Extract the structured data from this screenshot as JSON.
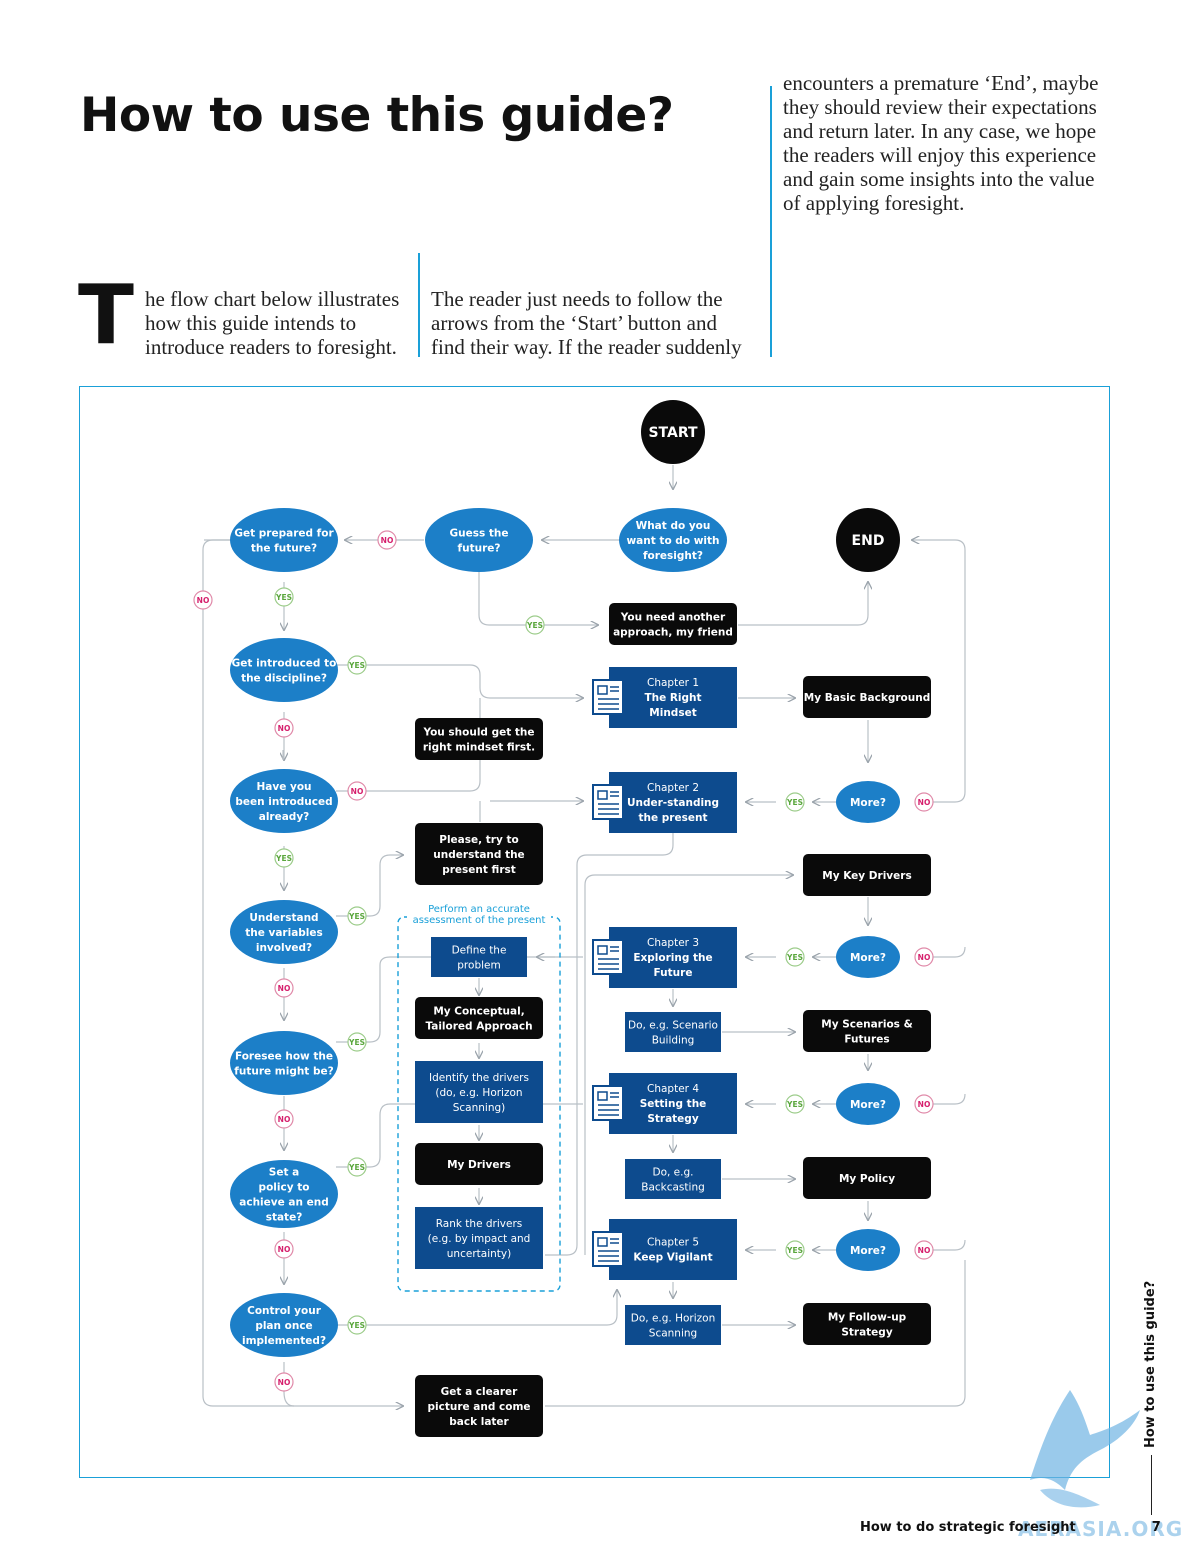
{
  "heading": "How to use this guide?",
  "intro": {
    "drop_cap": "T",
    "col1": [
      "he flow chart below illustrates",
      "how this guide intends to",
      "introduce readers to foresight."
    ],
    "col2": [
      "The reader just needs to follow the",
      "arrows from the ‘Start’ button and",
      "find their way. If the reader suddenly"
    ],
    "col3": [
      "encounters a premature ‘End’, maybe",
      "they should review their expectations",
      "and return later. In any case, we hope",
      "the readers will enjoy this experience",
      "and gain some insights into the value",
      "of applying foresight."
    ]
  },
  "labels": {
    "yes": "YES",
    "no": "NO"
  },
  "colors": {
    "blue": "#1c7fc8",
    "navy": "#0d4b8e",
    "black": "#0a0a0a",
    "accent": "#1aa0d8",
    "no_text": "#d61f6c",
    "yes_text": "#5aa63c"
  },
  "chart": {
    "start": "START",
    "end": "END",
    "q_what": [
      "What do you",
      "want to do with",
      "foresight?"
    ],
    "q_guess": [
      "Guess the",
      "future?"
    ],
    "q_prepared": [
      "Get prepared for",
      "the future?"
    ],
    "q_introduced_to": [
      "Get introduced to",
      "the discipline?"
    ],
    "q_have_introduced": [
      "Have you",
      "been introduced",
      "already?"
    ],
    "q_variables": [
      "Understand",
      "the variables",
      "involved?"
    ],
    "q_foresee": [
      "Foresee how the",
      "future might be?"
    ],
    "q_policy": [
      "Set a",
      "policy to",
      "achieve an end",
      "state?"
    ],
    "q_control": [
      "Control your",
      "plan once",
      "implemented?"
    ],
    "b_another": [
      "You need another",
      "approach, my friend"
    ],
    "b_mindset_first": [
      "You should get the",
      "right mindset first."
    ],
    "b_try_present": [
      "Please, try to",
      "understand the",
      "present first"
    ],
    "b_clearer": [
      "Get a clearer",
      "picture and come",
      "back later"
    ],
    "ch1": [
      "Chapter 1",
      "The Right",
      "Mindset"
    ],
    "ch2": [
      "Chapter 2",
      "Under-standing",
      "the present"
    ],
    "ch3": [
      "Chapter 3",
      "Exploring the",
      "Future"
    ],
    "ch4": [
      "Chapter 4",
      "Setting the",
      "Strategy"
    ],
    "ch5": [
      "Chapter 5",
      "Keep Vigilant"
    ],
    "perform": [
      "Perform an accurate",
      "assessment of the present"
    ],
    "define": [
      "Define the",
      "problem"
    ],
    "conceptual": [
      "My Conceptual,",
      "Tailored Approach"
    ],
    "identify": [
      "Identify the drivers",
      "(do, e.g. Horizon",
      "Scanning)"
    ],
    "my_drivers": [
      "My Drivers"
    ],
    "rank": [
      "Rank the drivers",
      "(e.g. by impact and",
      "uncertainty)"
    ],
    "scenario": [
      "Do, e.g.  Scenario",
      "Building"
    ],
    "backcasting": [
      "Do, e.g.",
      "Backcasting"
    ],
    "horizon": [
      "Do, e.g.  Horizon",
      "Scanning"
    ],
    "basic_bg": [
      "My Basic Background"
    ],
    "key_drivers": [
      "My Key Drivers"
    ],
    "scenarios_futures": [
      "My Scenarios &",
      "Futures"
    ],
    "my_policy": [
      "My Policy"
    ],
    "followup": [
      "My Follow-up",
      "Strategy"
    ],
    "more": [
      "More?"
    ]
  },
  "footer": {
    "title": "How to do strategic foresight",
    "page": "7",
    "side_tab": "How to use this guide?",
    "watermark": "AERASIA.ORG"
  }
}
